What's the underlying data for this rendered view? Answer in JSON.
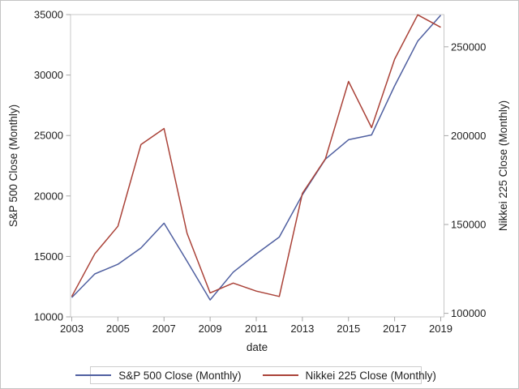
{
  "chart_data": {
    "type": "line",
    "title": "",
    "xlabel": "date",
    "x": [
      2003,
      2004,
      2005,
      2006,
      2007,
      2008,
      2009,
      2010,
      2011,
      2012,
      2013,
      2014,
      2015,
      2016,
      2017,
      2018,
      2019
    ],
    "x_range": [
      2003,
      2019
    ],
    "x_ticks": [
      2003,
      2005,
      2007,
      2009,
      2011,
      2013,
      2015,
      2017,
      2019
    ],
    "grid": "off",
    "series": [
      {
        "name": "S&P 500 Close (Monthly)",
        "axis": "left",
        "color": "#4f5fa0",
        "values": [
          11600,
          13550,
          14350,
          15700,
          17750,
          14600,
          11400,
          13700,
          15200,
          16600,
          20100,
          23050,
          24650,
          25050,
          29100,
          32800,
          34950
        ]
      },
      {
        "name": "Nikkei 225 Close (Monthly)",
        "axis": "right",
        "color": "#aa4238",
        "values": [
          109500,
          133500,
          149000,
          195000,
          204000,
          145000,
          111500,
          117000,
          112500,
          109500,
          167500,
          187000,
          230500,
          204500,
          243000,
          268000,
          261000
        ]
      }
    ],
    "left_axis": {
      "label": "S&P 500 Close (Monthly)",
      "ticks": [
        10000,
        15000,
        20000,
        25000,
        30000,
        35000
      ],
      "range": [
        10000,
        35000
      ]
    },
    "right_axis": {
      "label": "Nikkei 225 Close (Monthly)",
      "ticks": [
        100000,
        150000,
        200000,
        250000
      ],
      "range": [
        98000,
        268150
      ]
    },
    "legend": {
      "position": "bottom",
      "entries": [
        "S&P 500 Close (Monthly)",
        "Nikkei 225 Close (Monthly)"
      ]
    }
  },
  "colors": {
    "frame": "#c8c8c8",
    "tick": "#a6a6a6",
    "text": "#1f1f1f",
    "background": "#ffffff"
  }
}
